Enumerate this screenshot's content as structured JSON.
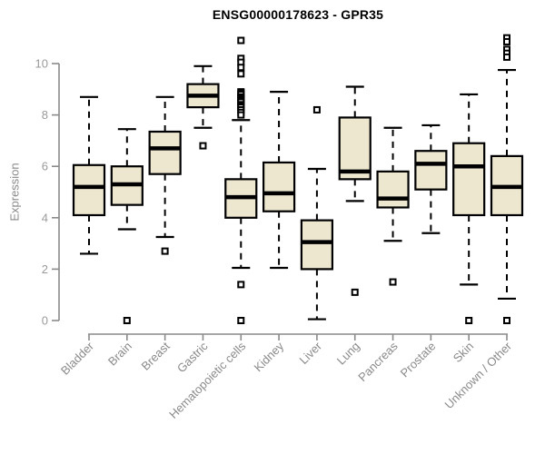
{
  "colors": {
    "box_fill": "#EDE7CF",
    "box_stroke": "#000000",
    "axis": "#8a8a8a",
    "tick_label": "#9a9a9a",
    "category_label": "#8a8a8a",
    "title": "#000000",
    "outlier_fill": "#ffffff"
  },
  "chart_data": {
    "type": "boxplot",
    "title": "ENSG00000178623 - GPR35",
    "xlabel": "",
    "ylabel": "Expression",
    "ylim": [
      0,
      10
    ],
    "yticks": [
      0,
      2,
      4,
      6,
      8,
      10
    ],
    "grid": false,
    "legend": "none",
    "categories": [
      "Bladder",
      "Brain",
      "Breast",
      "Gastric",
      "Hematopoietic cells",
      "Kidney",
      "Liver",
      "Lung",
      "Pancreas",
      "Prostate",
      "Skin",
      "Unknown / Other"
    ],
    "series": [
      {
        "name": "Bladder",
        "whisker_low": 2.6,
        "q1": 4.1,
        "median": 5.2,
        "q3": 6.05,
        "whisker_high": 8.7,
        "outliers": []
      },
      {
        "name": "Brain",
        "whisker_low": 3.55,
        "q1": 4.5,
        "median": 5.3,
        "q3": 6.0,
        "whisker_high": 7.45,
        "outliers": [
          0.0
        ]
      },
      {
        "name": "Breast",
        "whisker_low": 3.25,
        "q1": 5.7,
        "median": 6.7,
        "q3": 7.35,
        "whisker_high": 8.7,
        "outliers": [
          2.7
        ]
      },
      {
        "name": "Gastric",
        "whisker_low": 7.5,
        "q1": 8.3,
        "median": 8.75,
        "q3": 9.2,
        "whisker_high": 9.9,
        "outliers": [
          6.8
        ]
      },
      {
        "name": "Hematopoietic cells",
        "whisker_low": 2.05,
        "q1": 4.0,
        "median": 4.8,
        "q3": 5.5,
        "whisker_high": 7.8,
        "outliers": [
          10.9,
          10.2,
          10.05,
          9.85,
          9.6,
          8.9,
          8.85,
          8.8,
          8.7,
          8.65,
          8.6,
          8.55,
          8.5,
          8.4,
          8.35,
          8.3,
          8.2,
          8.1,
          8.0,
          1.4,
          0.0
        ]
      },
      {
        "name": "Kidney",
        "whisker_low": 2.05,
        "q1": 4.25,
        "median": 4.95,
        "q3": 6.15,
        "whisker_high": 8.9,
        "outliers": []
      },
      {
        "name": "Liver",
        "whisker_low": 0.05,
        "q1": 2.0,
        "median": 3.05,
        "q3": 3.9,
        "whisker_high": 5.9,
        "outliers": [
          8.2
        ]
      },
      {
        "name": "Lung",
        "whisker_low": 4.65,
        "q1": 5.5,
        "median": 5.8,
        "q3": 7.9,
        "whisker_high": 9.1,
        "outliers": [
          1.1
        ]
      },
      {
        "name": "Pancreas",
        "whisker_low": 3.1,
        "q1": 4.4,
        "median": 4.75,
        "q3": 5.8,
        "whisker_high": 7.5,
        "outliers": [
          1.5
        ]
      },
      {
        "name": "Prostate",
        "whisker_low": 3.4,
        "q1": 5.1,
        "median": 6.1,
        "q3": 6.6,
        "whisker_high": 7.6,
        "outliers": []
      },
      {
        "name": "Skin",
        "whisker_low": 1.4,
        "q1": 4.1,
        "median": 6.0,
        "q3": 6.9,
        "whisker_high": 8.8,
        "outliers": [
          0.0
        ]
      },
      {
        "name": "Unknown / Other",
        "whisker_low": 0.85,
        "q1": 4.1,
        "median": 5.2,
        "q3": 6.4,
        "whisker_high": 9.75,
        "outliers": [
          11.0,
          10.85,
          10.55,
          10.4,
          10.25,
          0.0
        ]
      }
    ]
  }
}
